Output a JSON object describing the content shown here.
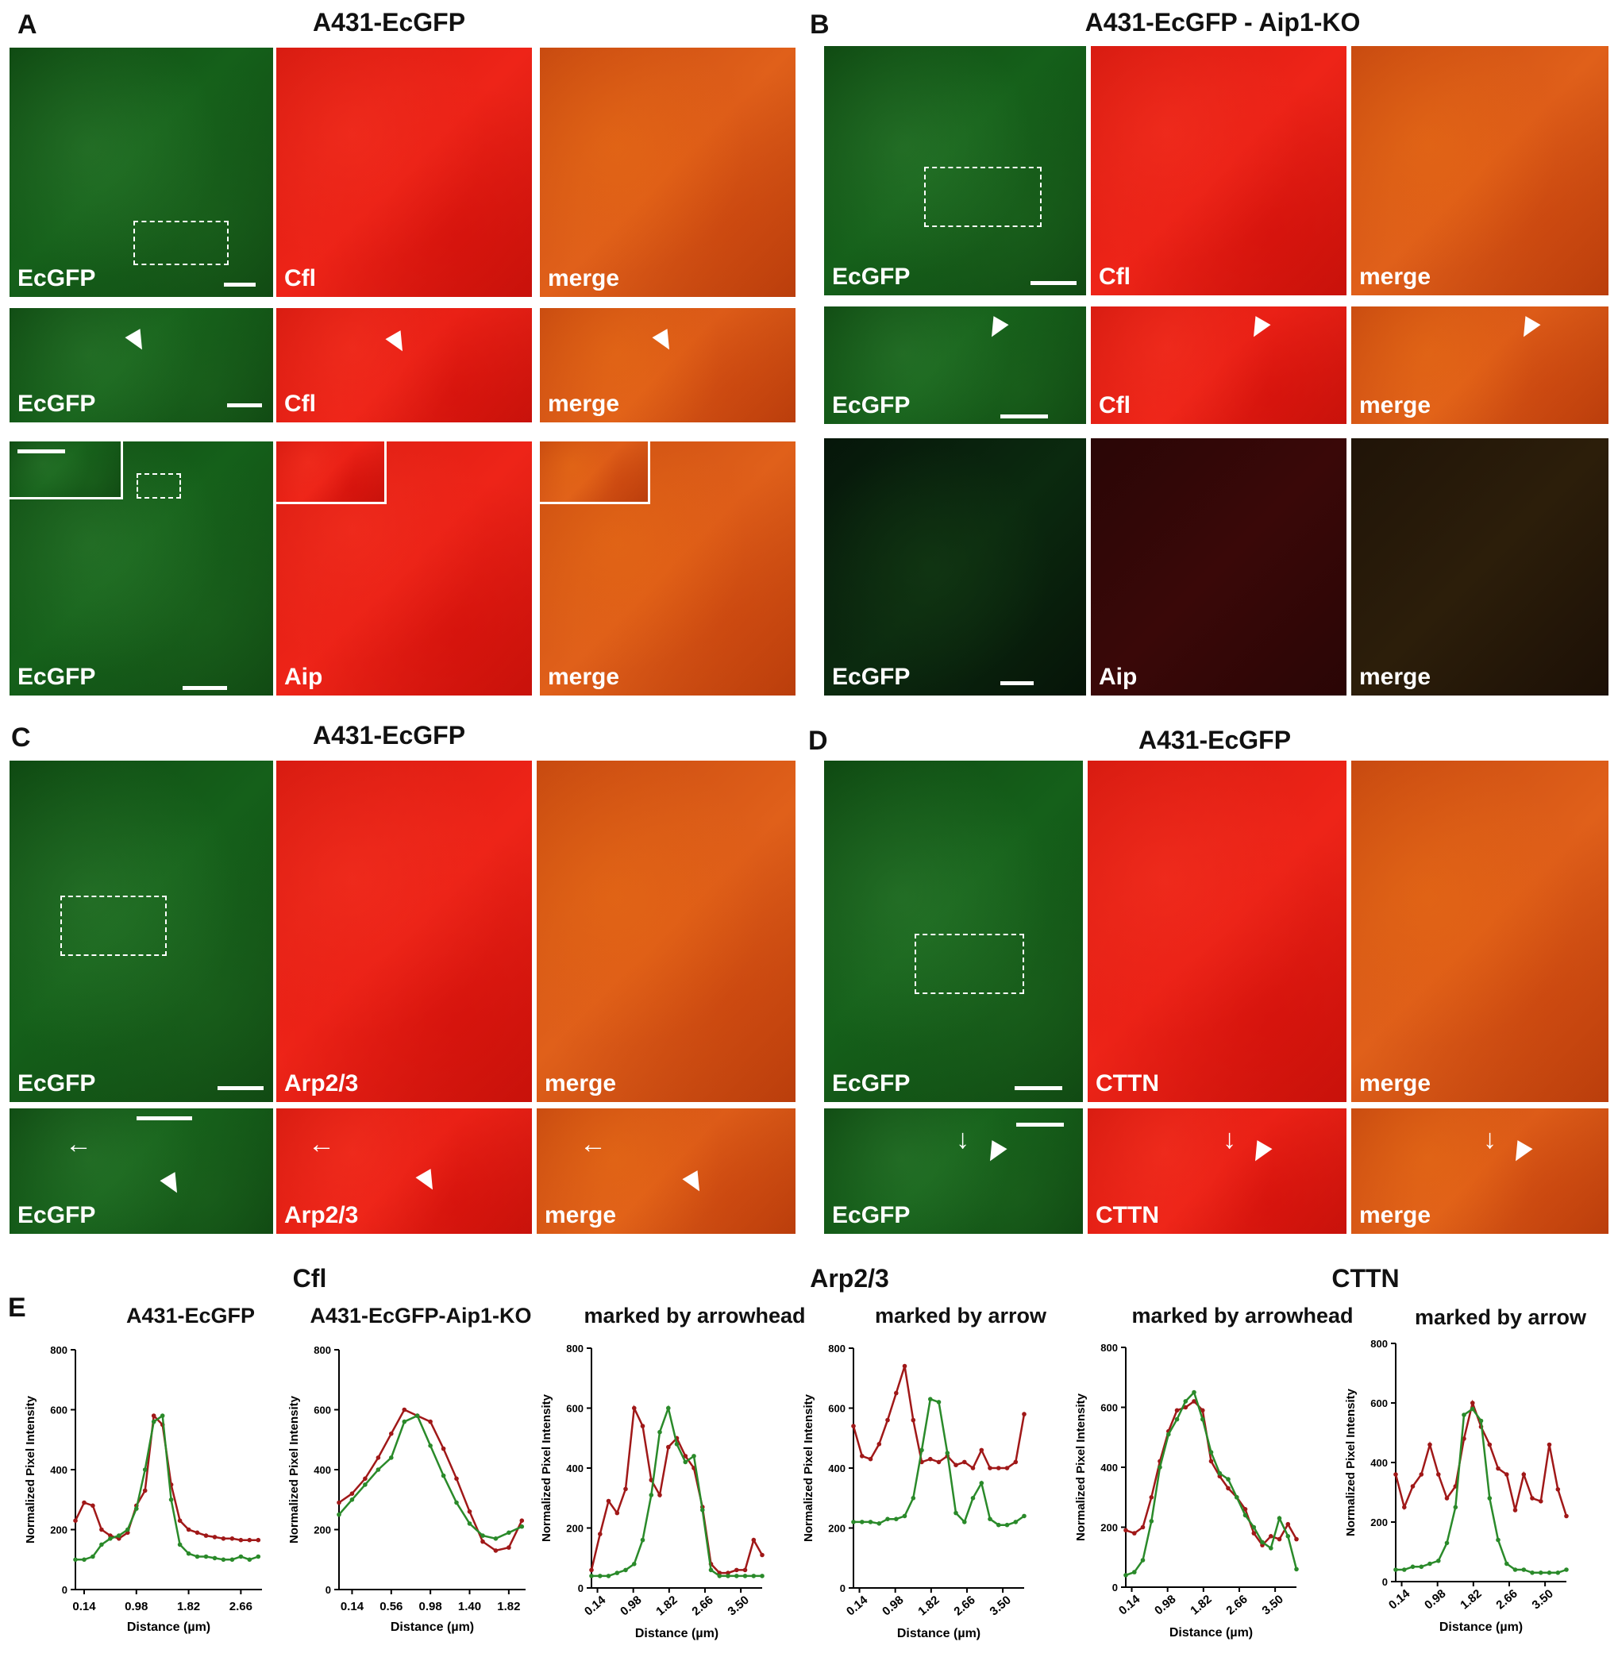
{
  "panel_letters": {
    "a": "A",
    "b": "B",
    "c": "C",
    "d": "D",
    "e": "E"
  },
  "panel_titles": {
    "a": "A431-EcGFP",
    "b": "A431-EcGFP - Aip1-KO",
    "c": "A431-EcGFP",
    "d": "A431-EcGFP"
  },
  "channel_labels": {
    "ecgfp": "EcGFP",
    "cfl": "Cfl",
    "merge": "merge",
    "aip": "Aip",
    "arp": "Arp2/3",
    "cttn": "CTTN"
  },
  "plot_group_headers": {
    "cfl": "Cfl",
    "arp": "Arp2/3",
    "cttn": "CTTN"
  },
  "plot_titles": [
    "A431-EcGFP",
    "A431-EcGFP-Aip1-KO",
    "marked by arrowhead",
    "marked by arrow",
    "marked by arrowhead",
    "marked by arrow"
  ],
  "axis": {
    "ylabel": "Normalized Pixel Intensity",
    "xlabel": "Distance (µm)"
  },
  "colors": {
    "red_series": "#a01818",
    "green_series": "#2a8a2a"
  },
  "chart_data": [
    {
      "type": "line",
      "title": "A431-EcGFP",
      "xlabel": "Distance (µm)",
      "ylabel": "Normalized Pixel Intensity",
      "xticks": [
        "0.14",
        "0.98",
        "1.82",
        "2.66"
      ],
      "yticks": [
        "0",
        "200",
        "400",
        "600",
        "800"
      ],
      "xlim": [
        0,
        3.0
      ],
      "ylim": [
        0,
        800
      ],
      "series": [
        {
          "color": "#a01818",
          "x": [
            0.0,
            0.14,
            0.28,
            0.42,
            0.56,
            0.7,
            0.84,
            0.98,
            1.12,
            1.26,
            1.4,
            1.54,
            1.68,
            1.82,
            1.96,
            2.1,
            2.24,
            2.38,
            2.52,
            2.66,
            2.8,
            2.94
          ],
          "y": [
            230,
            290,
            280,
            200,
            180,
            170,
            190,
            280,
            330,
            580,
            550,
            350,
            230,
            200,
            190,
            180,
            175,
            170,
            170,
            165,
            165,
            165
          ]
        },
        {
          "color": "#2a8a2a",
          "x": [
            0.0,
            0.14,
            0.28,
            0.42,
            0.56,
            0.7,
            0.84,
            0.98,
            1.12,
            1.26,
            1.4,
            1.54,
            1.68,
            1.82,
            1.96,
            2.1,
            2.24,
            2.38,
            2.52,
            2.66,
            2.8,
            2.94
          ],
          "y": [
            100,
            100,
            110,
            150,
            170,
            180,
            200,
            270,
            400,
            560,
            580,
            300,
            150,
            120,
            110,
            110,
            105,
            100,
            100,
            110,
            100,
            110
          ]
        }
      ]
    },
    {
      "type": "line",
      "title": "A431-EcGFP-Aip1-KO",
      "xlabel": "Distance (µm)",
      "ylabel": "Normalized Pixel Intensity",
      "xticks": [
        "0.14",
        "0.56",
        "0.98",
        "1.40",
        "1.82"
      ],
      "yticks": [
        "0",
        "200",
        "400",
        "600",
        "800"
      ],
      "xlim": [
        0,
        2.0
      ],
      "ylim": [
        0,
        800
      ],
      "series": [
        {
          "color": "#a01818",
          "x": [
            0.0,
            0.14,
            0.28,
            0.42,
            0.56,
            0.7,
            0.84,
            0.98,
            1.12,
            1.26,
            1.4,
            1.54,
            1.68,
            1.82,
            1.96
          ],
          "y": [
            290,
            320,
            370,
            440,
            520,
            600,
            580,
            560,
            470,
            370,
            260,
            160,
            130,
            140,
            230
          ]
        },
        {
          "color": "#2a8a2a",
          "x": [
            0.0,
            0.14,
            0.28,
            0.42,
            0.56,
            0.7,
            0.84,
            0.98,
            1.12,
            1.26,
            1.4,
            1.54,
            1.68,
            1.82,
            1.96
          ],
          "y": [
            250,
            300,
            350,
            400,
            440,
            560,
            580,
            480,
            380,
            290,
            220,
            180,
            170,
            190,
            210
          ]
        }
      ]
    },
    {
      "type": "line",
      "title": "marked by arrowhead",
      "xlabel": "Distance (µm)",
      "ylabel": "Normalized Pixel Intensity",
      "xticks": [
        "0.14",
        "0.98",
        "1.82",
        "2.66",
        "3.50"
      ],
      "yticks": [
        "0",
        "200",
        "400",
        "600",
        "800"
      ],
      "xlim": [
        0,
        4.0
      ],
      "ylim": [
        0,
        800
      ],
      "series": [
        {
          "color": "#a01818",
          "x": [
            0.0,
            0.2,
            0.4,
            0.6,
            0.8,
            1.0,
            1.2,
            1.4,
            1.6,
            1.8,
            2.0,
            2.2,
            2.4,
            2.6,
            2.8,
            3.0,
            3.2,
            3.4,
            3.6,
            3.8,
            4.0
          ],
          "y": [
            60,
            180,
            290,
            250,
            330,
            600,
            540,
            360,
            310,
            470,
            500,
            440,
            400,
            270,
            80,
            50,
            50,
            60,
            60,
            160,
            110
          ]
        },
        {
          "color": "#2a8a2a",
          "x": [
            0.0,
            0.2,
            0.4,
            0.6,
            0.8,
            1.0,
            1.2,
            1.4,
            1.6,
            1.8,
            2.0,
            2.2,
            2.4,
            2.6,
            2.8,
            3.0,
            3.2,
            3.4,
            3.6,
            3.8,
            4.0
          ],
          "y": [
            40,
            40,
            40,
            50,
            60,
            80,
            160,
            310,
            520,
            600,
            480,
            420,
            440,
            260,
            60,
            40,
            40,
            40,
            40,
            40,
            40
          ]
        }
      ]
    },
    {
      "type": "line",
      "title": "marked by arrow",
      "xlabel": "Distance (µm)",
      "ylabel": "Normalized Pixel Intensity",
      "xticks": [
        "0.14",
        "0.98",
        "1.82",
        "2.66",
        "3.50"
      ],
      "yticks": [
        "0",
        "200",
        "400",
        "600",
        "800"
      ],
      "xlim": [
        0,
        4.0
      ],
      "ylim": [
        0,
        800
      ],
      "series": [
        {
          "color": "#a01818",
          "x": [
            0.0,
            0.2,
            0.4,
            0.6,
            0.8,
            1.0,
            1.2,
            1.4,
            1.6,
            1.8,
            2.0,
            2.2,
            2.4,
            2.6,
            2.8,
            3.0,
            3.2,
            3.4,
            3.6,
            3.8,
            4.0
          ],
          "y": [
            540,
            440,
            430,
            480,
            560,
            650,
            740,
            560,
            420,
            430,
            420,
            440,
            410,
            420,
            400,
            460,
            400,
            400,
            400,
            420,
            580
          ]
        },
        {
          "color": "#2a8a2a",
          "x": [
            0.0,
            0.2,
            0.4,
            0.6,
            0.8,
            1.0,
            1.2,
            1.4,
            1.6,
            1.8,
            2.0,
            2.2,
            2.4,
            2.6,
            2.8,
            3.0,
            3.2,
            3.4,
            3.6,
            3.8,
            4.0
          ],
          "y": [
            220,
            220,
            220,
            215,
            230,
            230,
            240,
            300,
            460,
            630,
            620,
            450,
            250,
            220,
            300,
            350,
            230,
            210,
            210,
            220,
            240
          ]
        }
      ]
    },
    {
      "type": "line",
      "title": "marked by arrowhead",
      "xlabel": "Distance (µm)",
      "ylabel": "Normalized Pixel Intensity",
      "xticks": [
        "0.14",
        "0.98",
        "1.82",
        "2.66",
        "3.50"
      ],
      "yticks": [
        "0",
        "200",
        "400",
        "600",
        "800"
      ],
      "xlim": [
        0,
        4.0
      ],
      "ylim": [
        0,
        800
      ],
      "series": [
        {
          "color": "#a01818",
          "x": [
            0.0,
            0.2,
            0.4,
            0.6,
            0.8,
            1.0,
            1.2,
            1.4,
            1.6,
            1.8,
            2.0,
            2.2,
            2.4,
            2.6,
            2.8,
            3.0,
            3.2,
            3.4,
            3.6,
            3.8,
            4.0
          ],
          "y": [
            190,
            180,
            200,
            300,
            420,
            520,
            590,
            600,
            620,
            590,
            420,
            370,
            330,
            300,
            260,
            180,
            140,
            170,
            160,
            210,
            160
          ]
        },
        {
          "color": "#2a8a2a",
          "x": [
            0.0,
            0.2,
            0.4,
            0.6,
            0.8,
            1.0,
            1.2,
            1.4,
            1.6,
            1.8,
            2.0,
            2.2,
            2.4,
            2.6,
            2.8,
            3.0,
            3.2,
            3.4,
            3.6,
            3.8,
            4.0
          ],
          "y": [
            40,
            50,
            90,
            220,
            400,
            510,
            560,
            620,
            650,
            560,
            450,
            380,
            360,
            300,
            240,
            200,
            150,
            130,
            230,
            170,
            60
          ]
        }
      ]
    },
    {
      "type": "line",
      "title": "marked by arrow",
      "xlabel": "Distance (µm)",
      "ylabel": "Normalized Pixel Intensity",
      "xticks": [
        "0.14",
        "0.98",
        "1.82",
        "2.66",
        "3.50"
      ],
      "yticks": [
        "0",
        "200",
        "400",
        "600",
        "800"
      ],
      "xlim": [
        0,
        4.0
      ],
      "ylim": [
        0,
        800
      ],
      "series": [
        {
          "color": "#a01818",
          "x": [
            0.0,
            0.2,
            0.4,
            0.6,
            0.8,
            1.0,
            1.2,
            1.4,
            1.6,
            1.8,
            2.0,
            2.2,
            2.4,
            2.6,
            2.8,
            3.0,
            3.2,
            3.4,
            3.6,
            3.8,
            4.0
          ],
          "y": [
            360,
            250,
            320,
            360,
            460,
            360,
            280,
            320,
            480,
            600,
            520,
            460,
            380,
            360,
            240,
            360,
            280,
            270,
            460,
            310,
            220
          ]
        },
        {
          "color": "#2a8a2a",
          "x": [
            0.0,
            0.2,
            0.4,
            0.6,
            0.8,
            1.0,
            1.2,
            1.4,
            1.6,
            1.8,
            2.0,
            2.2,
            2.4,
            2.6,
            2.8,
            3.0,
            3.2,
            3.4,
            3.6,
            3.8,
            4.0
          ],
          "y": [
            40,
            40,
            50,
            50,
            60,
            70,
            130,
            250,
            560,
            580,
            540,
            280,
            140,
            60,
            40,
            40,
            30,
            30,
            30,
            30,
            40
          ]
        }
      ]
    }
  ]
}
